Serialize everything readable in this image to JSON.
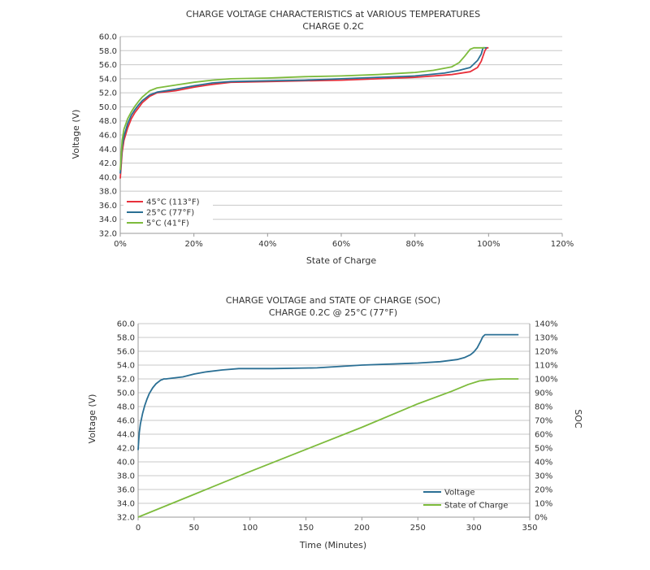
{
  "chart_data": [
    {
      "type": "line",
      "title": "CHARGE VOLTAGE CHARACTERISTICS at VARIOUS TEMPERATURES",
      "subtitle": "CHARGE 0.2C",
      "xlabel": "State of Charge",
      "ylabel": "Voltage (V)",
      "xlim": [
        0,
        120
      ],
      "ylim": [
        32,
        60
      ],
      "xticks": [
        "0%",
        "20%",
        "40%",
        "60%",
        "80%",
        "100%",
        "120%"
      ],
      "yticks": [
        "32.0",
        "34.0",
        "36.0",
        "38.0",
        "40.0",
        "42.0",
        "44.0",
        "46.0",
        "48.0",
        "50.0",
        "52.0",
        "54.0",
        "56.0",
        "58.0",
        "60.0"
      ],
      "grid": true,
      "legend": "bottom-left",
      "series": [
        {
          "name": "45°C (113°F)",
          "color": "#e8303b",
          "x": [
            0,
            0.5,
            1,
            2,
            3,
            4,
            5,
            6,
            8,
            10,
            15,
            20,
            25,
            30,
            40,
            50,
            60,
            70,
            80,
            90,
            95,
            97,
            98,
            99,
            99.5,
            100
          ],
          "y": [
            39.8,
            43.5,
            45.2,
            47.0,
            48.3,
            49.2,
            49.9,
            50.6,
            51.5,
            52.0,
            52.3,
            52.8,
            53.2,
            53.5,
            53.6,
            53.7,
            53.8,
            54.0,
            54.2,
            54.6,
            55.0,
            55.6,
            56.5,
            58.0,
            58.4,
            58.4
          ]
        },
        {
          "name": "25°C (77°F)",
          "color": "#2a6f94",
          "x": [
            0,
            0.5,
            1,
            2,
            3,
            4,
            5,
            6,
            8,
            10,
            15,
            20,
            25,
            30,
            40,
            50,
            60,
            70,
            80,
            88,
            92,
            95,
            97,
            98,
            98.5,
            99.5
          ],
          "y": [
            40.5,
            44.3,
            45.8,
            47.6,
            48.8,
            49.6,
            50.3,
            50.9,
            51.7,
            52.1,
            52.5,
            53.0,
            53.4,
            53.6,
            53.7,
            53.8,
            54.0,
            54.2,
            54.4,
            54.8,
            55.2,
            55.6,
            56.6,
            57.5,
            58.4,
            58.4
          ]
        },
        {
          "name": "5°C (41°F)",
          "color": "#7dbb3c",
          "x": [
            0,
            0.5,
            1,
            2,
            3,
            4,
            5,
            6,
            8,
            10,
            15,
            20,
            25,
            30,
            40,
            50,
            60,
            70,
            80,
            85,
            90,
            92,
            93.5,
            95,
            96,
            99
          ],
          "y": [
            41.0,
            45.2,
            46.8,
            48.3,
            49.3,
            50.1,
            50.8,
            51.4,
            52.3,
            52.7,
            53.1,
            53.5,
            53.8,
            54.0,
            54.1,
            54.3,
            54.4,
            54.6,
            54.9,
            55.2,
            55.7,
            56.3,
            57.2,
            58.2,
            58.4,
            58.4
          ]
        }
      ]
    },
    {
      "type": "line",
      "title": "CHARGE VOLTAGE and STATE OF CHARGE (SOC)",
      "subtitle": "CHARGE 0.2C @ 25°C (77°F)",
      "xlabel": "Time (Minutes)",
      "ylabel": "Voltage (V)",
      "y2label": "SOC",
      "xlim": [
        0,
        350
      ],
      "ylim": [
        32,
        60
      ],
      "y2lim": [
        0,
        140
      ],
      "xticks": [
        "0",
        "50",
        "100",
        "150",
        "200",
        "250",
        "300",
        "350"
      ],
      "yticks": [
        "32.0",
        "34.0",
        "36.0",
        "38.0",
        "40.0",
        "42.0",
        "44.0",
        "46.0",
        "48.0",
        "50.0",
        "52.0",
        "54.0",
        "56.0",
        "58.0",
        "60.0"
      ],
      "y2ticks": [
        "0%",
        "10%",
        "20%",
        "30%",
        "40%",
        "50%",
        "60%",
        "70%",
        "80%",
        "90%",
        "100%",
        "110%",
        "120%",
        "130%",
        "140%"
      ],
      "grid": true,
      "legend": "bottom-right",
      "series": [
        {
          "name": "Voltage",
          "color": "#2a6f94",
          "axis": "left",
          "x": [
            0,
            0.5,
            1,
            2,
            4,
            6,
            8,
            10,
            13,
            16,
            20,
            23,
            25,
            30,
            40,
            50,
            60,
            75,
            90,
            120,
            160,
            200,
            250,
            270,
            285,
            292,
            297,
            300,
            303,
            306,
            308,
            310,
            340
          ],
          "y": [
            41.7,
            43.0,
            44.2,
            45.5,
            47.0,
            48.2,
            49.1,
            49.9,
            50.7,
            51.3,
            51.8,
            52.0,
            52.0,
            52.1,
            52.3,
            52.7,
            53.0,
            53.3,
            53.5,
            53.5,
            53.6,
            54.0,
            54.3,
            54.5,
            54.8,
            55.1,
            55.5,
            55.9,
            56.5,
            57.4,
            58.1,
            58.4,
            58.4
          ]
        },
        {
          "name": "State of Charge",
          "color": "#7dbb3c",
          "axis": "right",
          "x": [
            0,
            50,
            100,
            150,
            200,
            250,
            280,
            295,
            305,
            315,
            325,
            340
          ],
          "y": [
            0,
            16.5,
            33,
            49,
            65,
            82,
            91,
            96,
            98.5,
            99.6,
            100,
            100
          ]
        }
      ]
    }
  ]
}
